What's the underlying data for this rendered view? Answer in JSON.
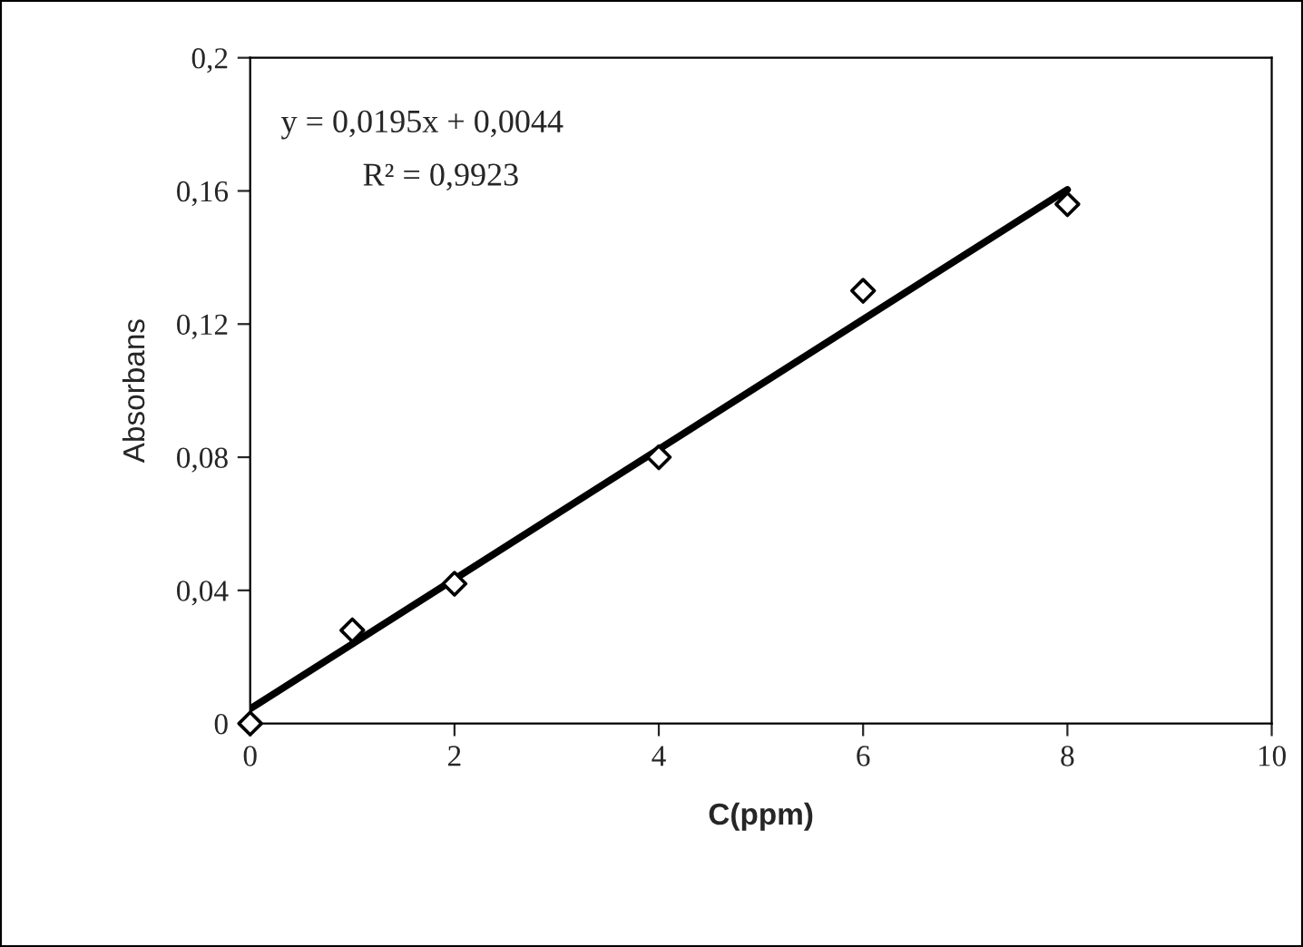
{
  "chart_data": {
    "type": "scatter",
    "xlabel": "C(ppm)",
    "ylabel": "Absorbans",
    "x": [
      0,
      1,
      2,
      4,
      6,
      8
    ],
    "series": [
      {
        "color": "#000000",
        "marker": "diamond",
        "values": [
          0,
          0.028,
          0.042,
          0.08,
          0.13,
          0.156
        ]
      },
      {
        "type": "line",
        "color": "#000000",
        "x": [
          0,
          8
        ],
        "values": [
          0.0044,
          0.1604
        ]
      }
    ],
    "xlim": [
      0,
      10
    ],
    "xticks": [
      0,
      2,
      4,
      6,
      8,
      10
    ],
    "ylim": [
      0,
      0.2
    ],
    "yticks": [
      {
        "value": 0,
        "label": "0"
      },
      {
        "value": 0.04,
        "label": "0,04"
      },
      {
        "value": 0.08,
        "label": "0,08"
      },
      {
        "value": 0.12,
        "label": "0,12"
      },
      {
        "value": 0.16,
        "label": "0,16"
      },
      {
        "value": 0.2,
        "label": "0,2"
      }
    ],
    "grid": false,
    "annotations": [
      "y = 0,0195x + 0,0044",
      "R² = 0,9923"
    ]
  }
}
